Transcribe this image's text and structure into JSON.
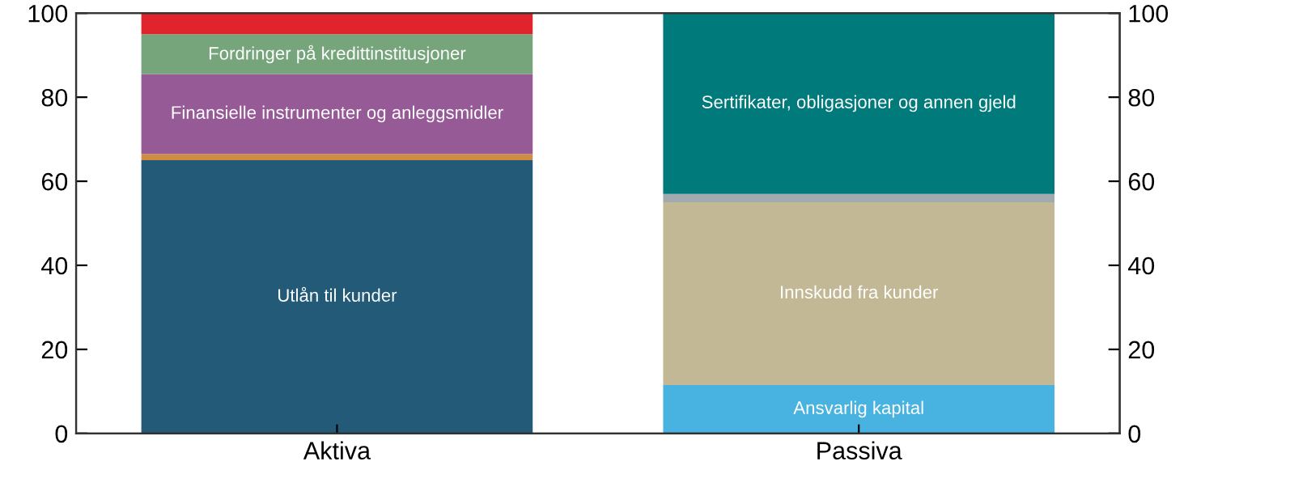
{
  "chart_data": {
    "type": "bar",
    "stacked": true,
    "categories": [
      "Aktiva",
      "Passiva"
    ],
    "series": [
      {
        "name": "Utlån til kunder",
        "color": "#225a78",
        "values": [
          65,
          null
        ]
      },
      {
        "color": "#d08c45",
        "values": [
          1.5,
          null
        ]
      },
      {
        "name": "Finansielle instrumenter og anleggsmidler",
        "color": "#965b96",
        "values": [
          19,
          null
        ]
      },
      {
        "name": "Fordringer på kredittinstitusjoner",
        "color": "#76a57c",
        "values": [
          9.5,
          null
        ]
      },
      {
        "color": "#e0242e",
        "values": [
          5,
          null
        ]
      },
      {
        "name": "Ansvarlig kapital",
        "color": "#48b2e0",
        "values": [
          null,
          11.5
        ]
      },
      {
        "name": "Innskudd fra kunder",
        "color": "#c3b896",
        "values": [
          null,
          43.5
        ]
      },
      {
        "color": "#a0aaaf",
        "values": [
          null,
          2
        ]
      },
      {
        "name": "Sertifikater, obligasjoner og annen gjeld",
        "color": "#007a7a",
        "values": [
          null,
          43
        ]
      }
    ],
    "ylim": [
      0,
      100
    ],
    "yticks": [
      0,
      20,
      40,
      60,
      80,
      100
    ],
    "y2lim": [
      0,
      100
    ],
    "y2ticks": [
      0,
      20,
      40,
      60,
      80,
      100
    ],
    "grid": false,
    "legend": false
  }
}
